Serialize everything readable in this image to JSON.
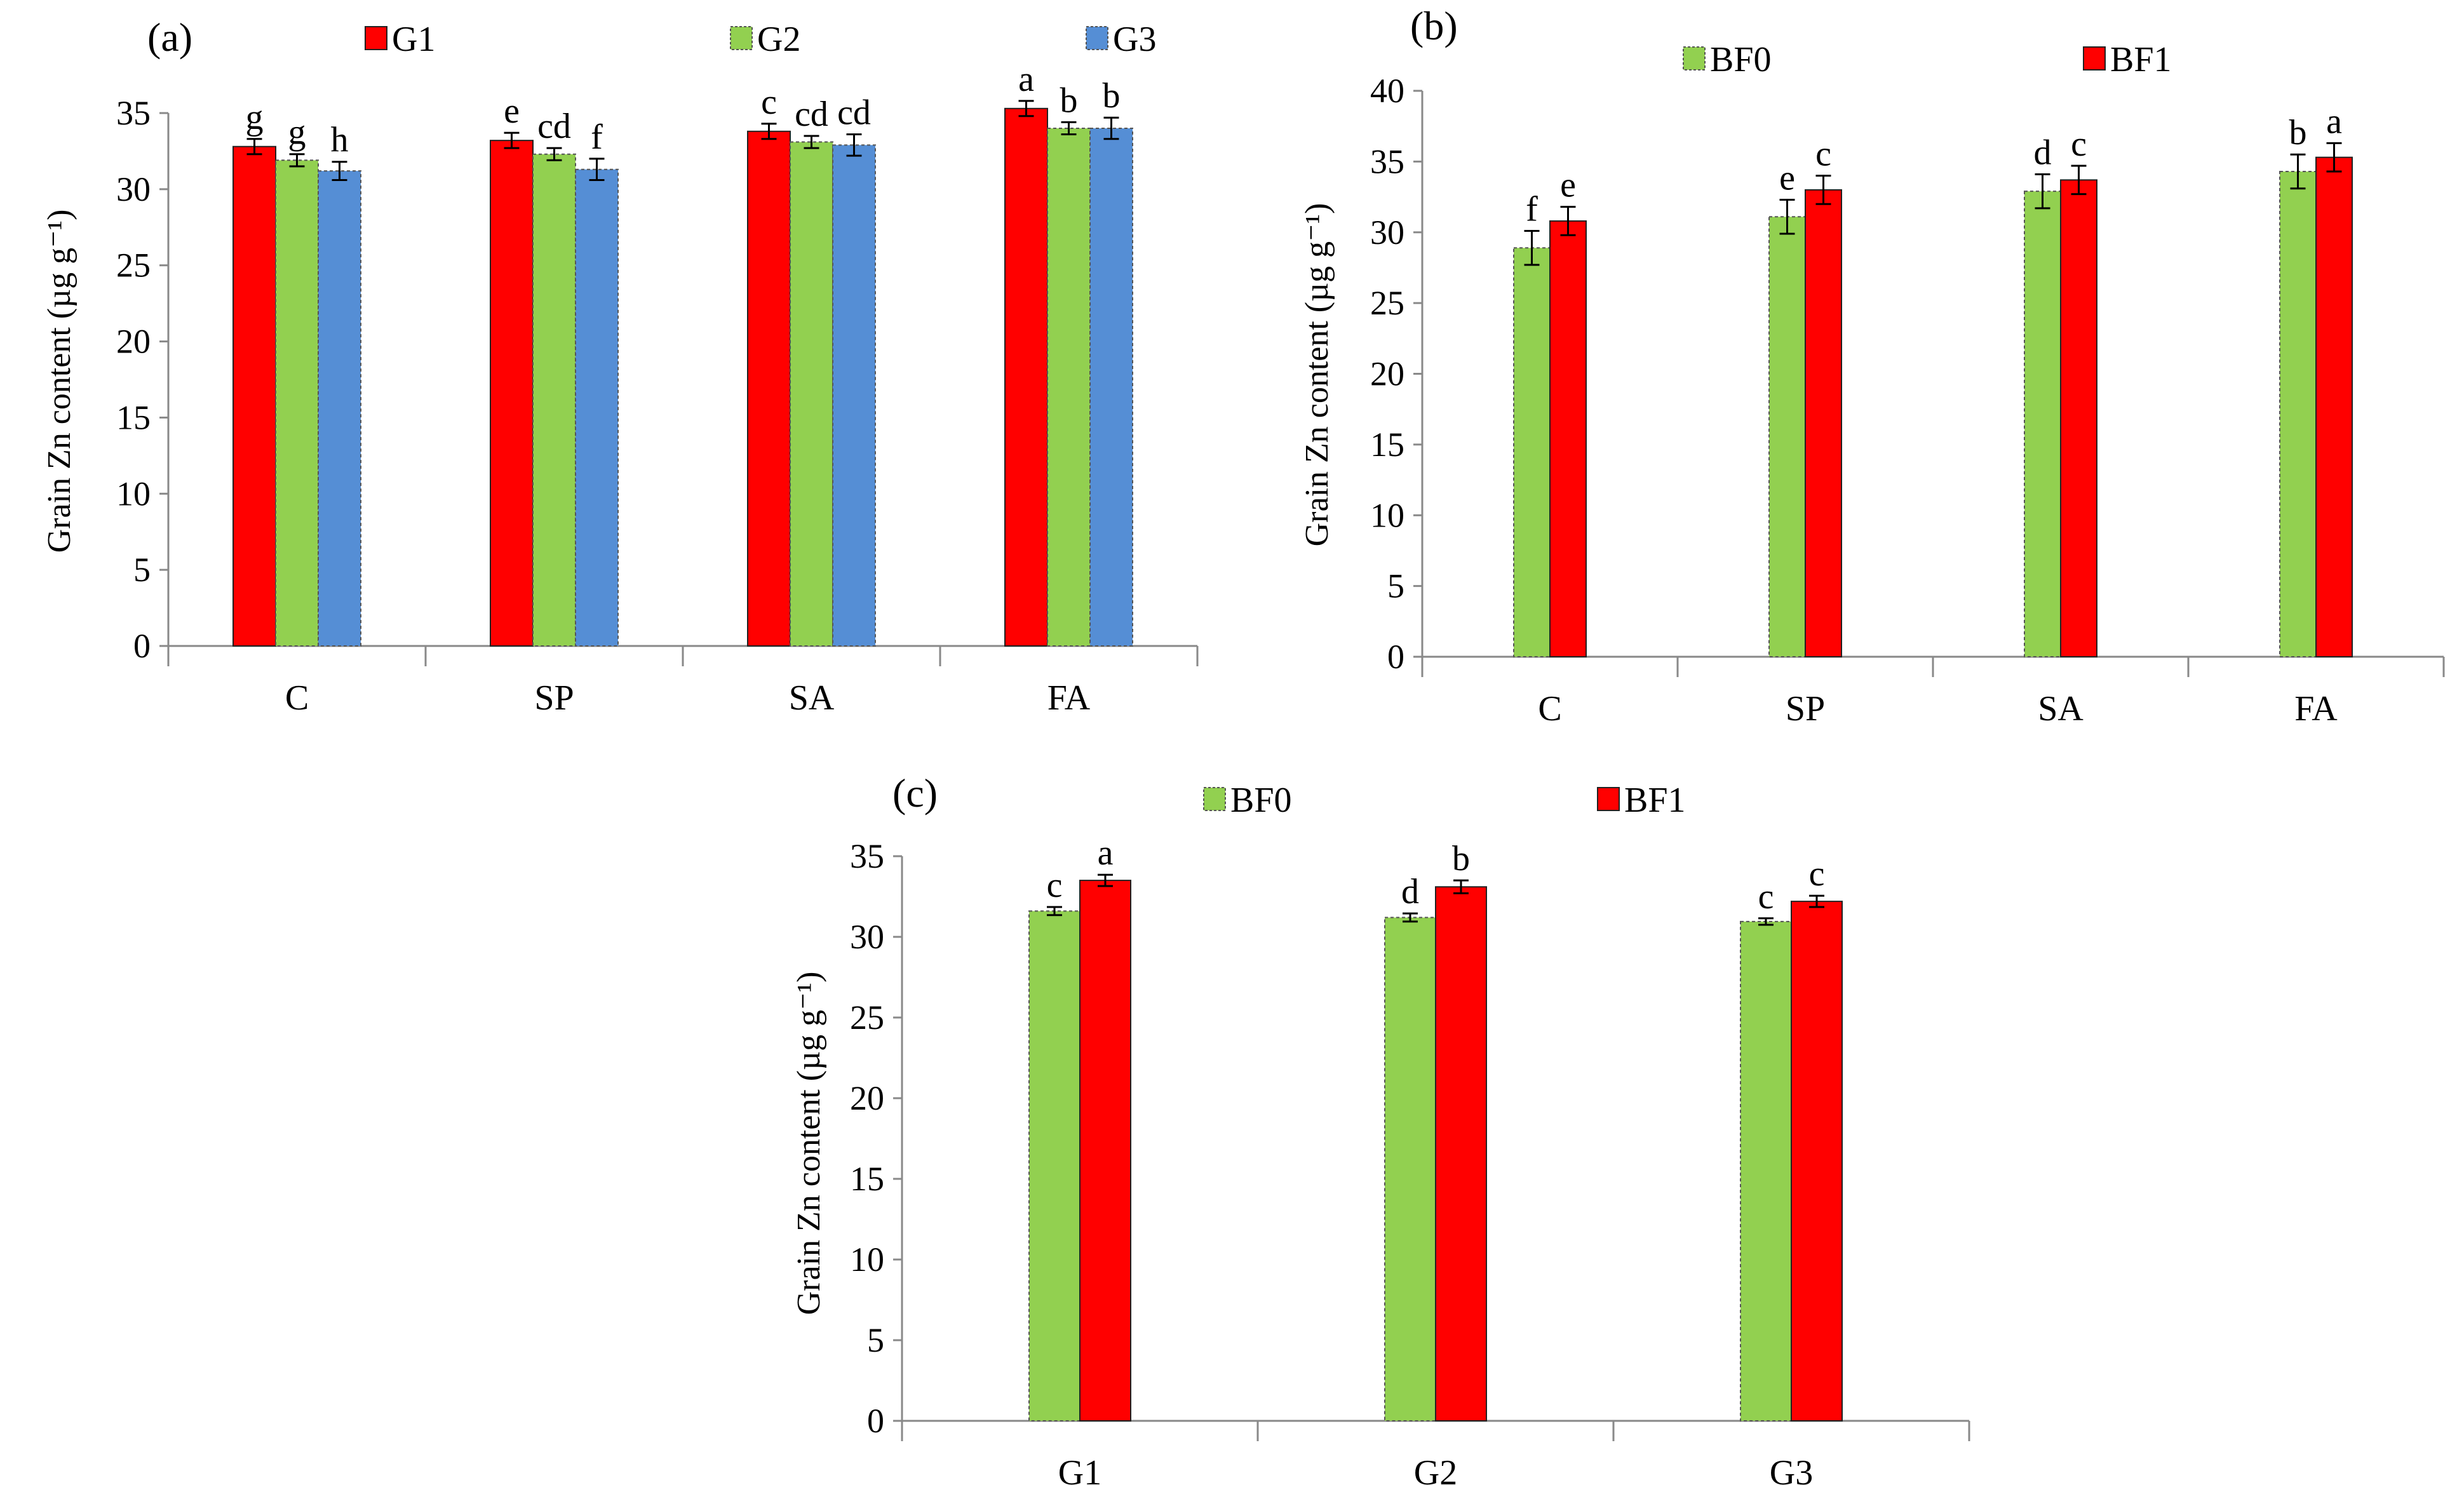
{
  "chart_data": [
    {
      "type": "bar",
      "panel_label": "(a)",
      "title": "",
      "xlabel": "",
      "ylabel": "Grain Zn content (µg g⁻¹)",
      "ylim": [
        0,
        35
      ],
      "yticks": [
        0,
        5,
        10,
        15,
        20,
        25,
        30,
        35
      ],
      "grid": false,
      "legend_position": "top",
      "categories": [
        "C",
        "SP",
        "SA",
        "FA"
      ],
      "series": [
        {
          "name": "G1",
          "color": "#ff0000",
          "values": [
            32.8,
            33.2,
            33.8,
            35.3
          ],
          "errors": [
            0.5,
            0.5,
            0.5,
            0.5
          ],
          "letters": [
            "g",
            "e",
            "c",
            "a"
          ]
        },
        {
          "name": "G2",
          "color": "#92d050",
          "values": [
            31.9,
            32.3,
            33.1,
            34.0
          ],
          "errors": [
            0.4,
            0.4,
            0.4,
            0.4
          ],
          "letters": [
            "g",
            "cd",
            "cd",
            "b"
          ]
        },
        {
          "name": "G3",
          "color": "#558ed5",
          "values": [
            31.2,
            31.3,
            32.9,
            34.0
          ],
          "errors": [
            0.6,
            0.7,
            0.7,
            0.7
          ],
          "letters": [
            "h",
            "f",
            "cd",
            "b"
          ]
        }
      ]
    },
    {
      "type": "bar",
      "panel_label": "(b)",
      "title": "",
      "xlabel": "",
      "ylabel": "Grain Zn content (µg g⁻¹)",
      "ylim": [
        0,
        40
      ],
      "yticks": [
        0,
        5,
        10,
        15,
        20,
        25,
        30,
        35,
        40
      ],
      "grid": false,
      "legend_position": "top",
      "categories": [
        "C",
        "SP",
        "SA",
        "FA"
      ],
      "series": [
        {
          "name": "BF0",
          "color": "#92d050",
          "values": [
            28.9,
            31.1,
            32.9,
            34.3
          ],
          "errors": [
            1.2,
            1.2,
            1.2,
            1.2
          ],
          "letters": [
            "f",
            "e",
            "d",
            "b"
          ]
        },
        {
          "name": "BF1",
          "color": "#ff0000",
          "values": [
            30.8,
            33.0,
            33.7,
            35.3
          ],
          "errors": [
            1.0,
            1.0,
            1.0,
            1.0
          ],
          "letters": [
            "e",
            "c",
            "c",
            "a"
          ]
        }
      ]
    },
    {
      "type": "bar",
      "panel_label": "(c)",
      "title": "",
      "xlabel": "",
      "ylabel": "Grain Zn content (µg g⁻¹)",
      "ylim": [
        0,
        35
      ],
      "yticks": [
        0,
        5,
        10,
        15,
        20,
        25,
        30,
        35
      ],
      "grid": false,
      "legend_position": "top",
      "categories": [
        "G1",
        "G2",
        "G3"
      ],
      "series": [
        {
          "name": "BF0",
          "color": "#92d050",
          "values": [
            31.6,
            31.2,
            30.95
          ],
          "errors": [
            0.25,
            0.25,
            0.2
          ],
          "letters": [
            "c",
            "d",
            "c"
          ]
        },
        {
          "name": "BF1",
          "color": "#ff0000",
          "values": [
            33.5,
            33.1,
            32.2
          ],
          "errors": [
            0.35,
            0.4,
            0.35
          ],
          "letters": [
            "a",
            "b",
            "c"
          ]
        }
      ]
    }
  ]
}
